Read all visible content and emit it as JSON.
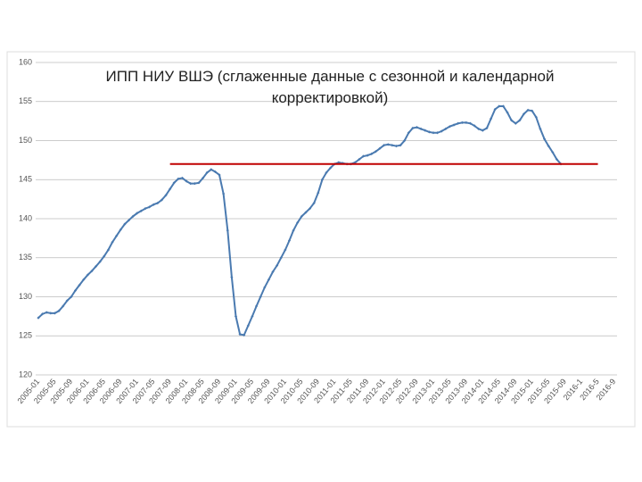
{
  "chart_data": {
    "type": "line",
    "title": "ИПП НИУ ВШЭ (сглаженные данные с сезонной и календарной корректировкой)",
    "categories": [
      "2005-01",
      null,
      null,
      null,
      "2005-05",
      null,
      null,
      null,
      "2005-09",
      null,
      null,
      null,
      "2006-01",
      null,
      null,
      null,
      "2006-05",
      null,
      null,
      null,
      "2006-09",
      null,
      null,
      null,
      "2007-01",
      null,
      null,
      null,
      "2007-05",
      null,
      null,
      null,
      "2007-09",
      null,
      null,
      null,
      "2008-01",
      null,
      null,
      null,
      "2008-05",
      null,
      null,
      null,
      "2008-09",
      null,
      null,
      null,
      "2009-01",
      null,
      null,
      null,
      "2009-05",
      null,
      null,
      null,
      "2009-09",
      null,
      null,
      null,
      "2010-01",
      null,
      null,
      null,
      "2010-05",
      null,
      null,
      null,
      "2010-09",
      null,
      null,
      null,
      "2011-01",
      null,
      null,
      null,
      "2011-05",
      null,
      null,
      null,
      "2011-09",
      null,
      null,
      null,
      "2012-01",
      null,
      null,
      null,
      "2012-05",
      null,
      null,
      null,
      "2012-09",
      null,
      null,
      null,
      "2013-01",
      null,
      null,
      null,
      "2013-05",
      null,
      null,
      null,
      "2013-09",
      null,
      null,
      null,
      "2014-01",
      null,
      null,
      null,
      "2014-05",
      null,
      null,
      null,
      "2014-09",
      null,
      null,
      null,
      "2015-01",
      null,
      null,
      null,
      "2015-05",
      null,
      null,
      null,
      "2015-09",
      null,
      null,
      null,
      "2016-1",
      null,
      null,
      null,
      "2016-5",
      null,
      null,
      null,
      "2016-9"
    ],
    "values": [
      127.3,
      127.8,
      128.0,
      127.9,
      127.9,
      128.2,
      128.8,
      129.5,
      130.0,
      130.8,
      131.5,
      132.2,
      132.8,
      133.3,
      133.9,
      134.5,
      135.2,
      136.0,
      137.0,
      137.8,
      138.6,
      139.3,
      139.8,
      140.3,
      140.7,
      141.0,
      141.3,
      141.5,
      141.8,
      142.0,
      142.4,
      143.0,
      143.8,
      144.6,
      145.1,
      145.2,
      144.8,
      144.5,
      144.5,
      144.6,
      145.2,
      145.9,
      146.3,
      146.0,
      145.6,
      143.2,
      138.5,
      132.5,
      127.5,
      125.2,
      125.1,
      126.3,
      127.5,
      128.8,
      130.0,
      131.2,
      132.2,
      133.2,
      134.0,
      135.0,
      136.0,
      137.2,
      138.5,
      139.5,
      140.3,
      140.8,
      141.3,
      142.0,
      143.3,
      145.0,
      145.9,
      146.5,
      147.0,
      147.2,
      147.1,
      147.0,
      147.0,
      147.2,
      147.6,
      148.0,
      148.1,
      148.3,
      148.6,
      149.0,
      149.4,
      149.5,
      149.4,
      149.3,
      149.4,
      150.0,
      151.0,
      151.6,
      151.7,
      151.5,
      151.3,
      151.1,
      151.0,
      151.0,
      151.2,
      151.5,
      151.8,
      152.0,
      152.2,
      152.3,
      152.3,
      152.2,
      151.9,
      151.5,
      151.3,
      151.6,
      152.8,
      154.0,
      154.4,
      154.4,
      153.6,
      152.6,
      152.2,
      152.6,
      153.4,
      153.9,
      153.8,
      153.0,
      151.5,
      150.2,
      149.3,
      148.5,
      147.6,
      147.0,
      null,
      null,
      null,
      null,
      null,
      null,
      null,
      null,
      null,
      null,
      null,
      null,
      null
    ],
    "color": "#4a7ab0",
    "ylim": [
      120,
      160
    ],
    "yticks": [
      120,
      125,
      130,
      135,
      140,
      145,
      150,
      155,
      160
    ],
    "grid": true,
    "reference_line": {
      "value": 147,
      "color": "#c00000",
      "from": "2007-09",
      "to": "2016-5"
    }
  }
}
